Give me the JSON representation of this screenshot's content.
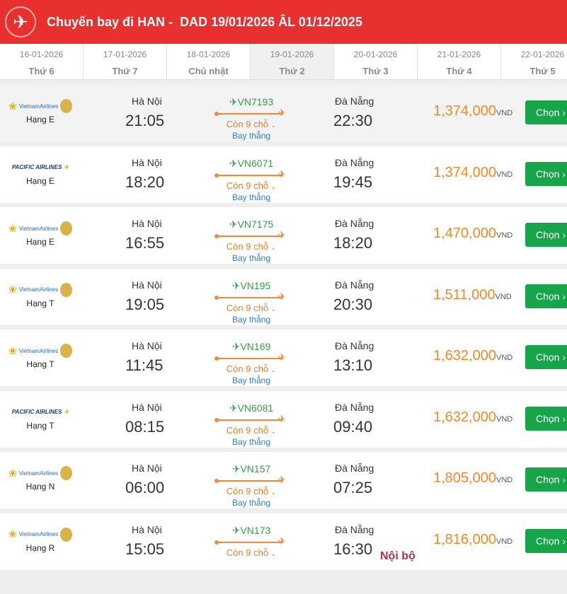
{
  "header": {
    "title": "Chuyến bay đi HAN -  DAD 19/01/2026 ÂL 01/12/2025",
    "icon": "airplane-icon",
    "color": "#e8302e"
  },
  "date_tabs": [
    {
      "date": "16-01-2026",
      "day": "Thứ 6"
    },
    {
      "date": "17-01-2026",
      "day": "Thứ 7"
    },
    {
      "date": "18-01-2026",
      "day": "Chủ nhật"
    },
    {
      "date": "19-01-2026",
      "day": "Thứ 2",
      "active": true
    },
    {
      "date": "20-01-2026",
      "day": "Thứ 3"
    },
    {
      "date": "21-01-2026",
      "day": "Thứ 4"
    },
    {
      "date": "22-01-2026",
      "day": "Thứ 5"
    }
  ],
  "currency": "VND",
  "select_label": "Chọn",
  "flights": [
    {
      "airline": "VietnamAirlines",
      "class": "Hạng E",
      "from": "Hà Nội",
      "dep": "21:05",
      "flight": "VN7193",
      "seats": "Còn 9 chỗ",
      "type": "Bay thẳng",
      "to": "Đà Nẵng",
      "arr": "22:30",
      "price": "1,374,000"
    },
    {
      "airline": "PACIFIC AIRLINES",
      "class": "Hạng E",
      "from": "Hà Nội",
      "dep": "18:20",
      "flight": "VN6071",
      "seats": "Còn 9 chỗ",
      "type": "Bay thẳng",
      "to": "Đà Nẵng",
      "arr": "19:45",
      "price": "1,374,000"
    },
    {
      "airline": "VietnamAirlines",
      "class": "Hạng E",
      "from": "Hà Nội",
      "dep": "16:55",
      "flight": "VN7175",
      "seats": "Còn 9 chỗ",
      "type": "Bay thẳng",
      "to": "Đà Nẵng",
      "arr": "18:20",
      "price": "1,470,000"
    },
    {
      "airline": "VietnamAirlines",
      "class": "Hạng T",
      "from": "Hà Nội",
      "dep": "19:05",
      "flight": "VN195",
      "seats": "Còn 9 chỗ",
      "type": "Bay thẳng",
      "to": "Đà Nẵng",
      "arr": "20:30",
      "price": "1,511,000"
    },
    {
      "airline": "VietnamAirlines",
      "class": "Hạng T",
      "from": "Hà Nội",
      "dep": "11:45",
      "flight": "VN169",
      "seats": "Còn 9 chỗ",
      "type": "Bay thẳng",
      "to": "Đà Nẵng",
      "arr": "13:10",
      "price": "1,632,000"
    },
    {
      "airline": "PACIFIC AIRLINES",
      "class": "Hạng T",
      "from": "Hà Nội",
      "dep": "08:15",
      "flight": "VN6081",
      "seats": "Còn 9 chỗ",
      "type": "Bay thẳng",
      "to": "Đà Nẵng",
      "arr": "09:40",
      "price": "1,632,000"
    },
    {
      "airline": "VietnamAirlines",
      "class": "Hạng N",
      "from": "Hà Nội",
      "dep": "06:00",
      "flight": "VN157",
      "seats": "Còn 9 chỗ",
      "type": "Bay thẳng",
      "to": "Đà Nẵng",
      "arr": "07:25",
      "price": "1,805,000"
    },
    {
      "airline": "VietnamAirlines",
      "class": "Hạng R",
      "from": "Hà Nội",
      "dep": "15:05",
      "flight": "VN173",
      "seats": "Còn 9 chỗ",
      "type": "",
      "to": "Đà Nẵng",
      "arr": "16:30",
      "price": "1,816,000",
      "note": "Nội bộ"
    }
  ]
}
